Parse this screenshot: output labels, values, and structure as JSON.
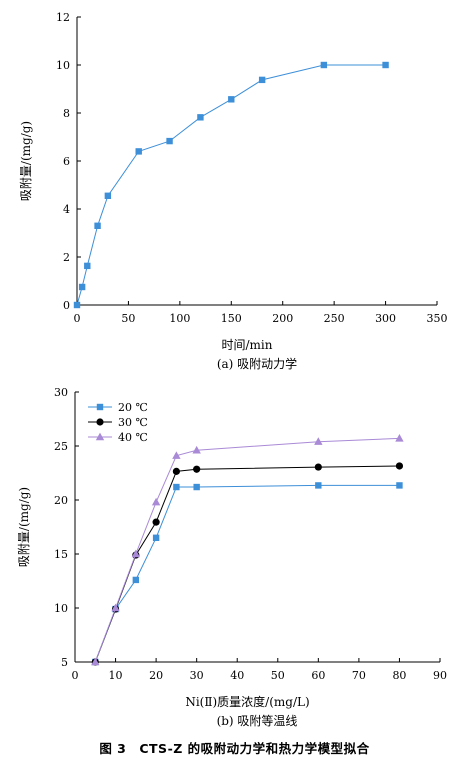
{
  "figure_caption": "图 3　CTS-Z 的吸附动力学和热力学模型拟合",
  "chart_data": [
    {
      "type": "line",
      "subtitle": "(a) 吸附动力学",
      "xlabel": "时间/min",
      "ylabel": "吸附量/(mg/g)",
      "xlim": [
        0,
        350
      ],
      "ylim": [
        0,
        12
      ],
      "xticks": [
        "0",
        "50",
        "100",
        "150",
        "200",
        "250",
        "300",
        "350"
      ],
      "yticks": [
        "0",
        "2",
        "4",
        "6",
        "8",
        "10",
        "12"
      ],
      "grid": false,
      "series": [
        {
          "color": "#3d8fd8",
          "marker": "square",
          "x": [
            0,
            5,
            10,
            20,
            30,
            60,
            90,
            120,
            150,
            180,
            240,
            300
          ],
          "y": [
            0.0,
            0.75,
            1.63,
            3.3,
            4.55,
            6.4,
            6.83,
            7.82,
            8.57,
            9.38,
            10.0,
            10.0
          ]
        }
      ]
    },
    {
      "type": "line",
      "subtitle": "(b) 吸附等温线",
      "xlabel": "Ni(Ⅱ)质量浓度/(mg/L)",
      "ylabel": "吸附量/(mg/g)",
      "xlim": [
        0,
        90
      ],
      "ylim": [
        5,
        30
      ],
      "xticks": [
        "0",
        "10",
        "20",
        "30",
        "40",
        "50",
        "60",
        "70",
        "80",
        "90"
      ],
      "yticks": [
        "5",
        "10",
        "15",
        "20",
        "25",
        "30"
      ],
      "grid": false,
      "legend_position": "top-left",
      "series": [
        {
          "name": "20 ℃",
          "color": "#3d8fd8",
          "marker": "square",
          "x": [
            5,
            10,
            15,
            20,
            25,
            30,
            60,
            80
          ],
          "y": [
            5.0,
            9.9,
            12.6,
            16.5,
            21.2,
            21.2,
            21.35,
            21.35
          ]
        },
        {
          "name": "30 ℃",
          "color": "#000000",
          "marker": "circle",
          "x": [
            5,
            10,
            15,
            20,
            25,
            30,
            60,
            80
          ],
          "y": [
            5.0,
            9.9,
            14.9,
            17.95,
            22.65,
            22.85,
            23.05,
            23.15
          ]
        },
        {
          "name": "40 ℃",
          "color": "#a98ad6",
          "marker": "triangle",
          "x": [
            5,
            10,
            15,
            20,
            25,
            30,
            60,
            80
          ],
          "y": [
            5.0,
            10.0,
            15.0,
            19.8,
            24.1,
            24.6,
            25.4,
            25.7
          ]
        }
      ]
    }
  ]
}
